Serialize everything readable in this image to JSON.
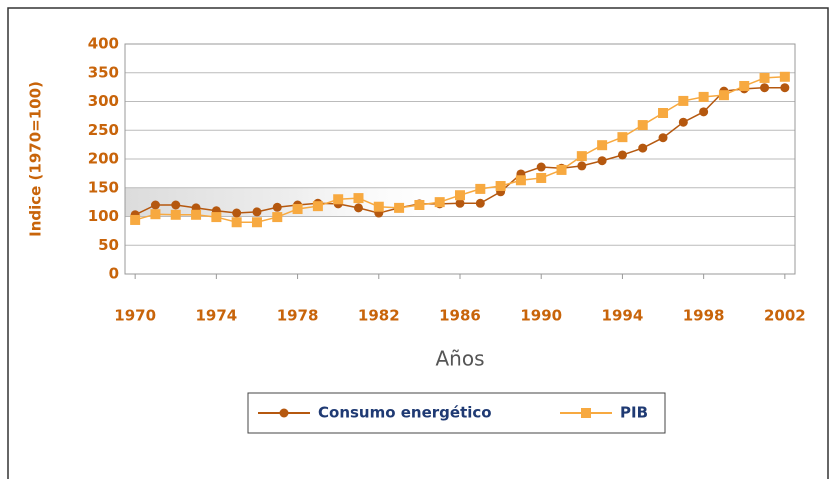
{
  "chart_data": {
    "type": "line",
    "ylabel": "Indice (1970=100)",
    "xlabel": "Años",
    "x": [
      1970,
      1971,
      1972,
      1973,
      1974,
      1975,
      1976,
      1977,
      1978,
      1979,
      1980,
      1981,
      1982,
      1983,
      1984,
      1985,
      1986,
      1987,
      1988,
      1989,
      1990,
      1991,
      1992,
      1993,
      1994,
      1995,
      1996,
      1997,
      1998,
      1999,
      2000,
      2001,
      2002
    ],
    "series": [
      {
        "name": "Consumo energético",
        "color": "#b5580f",
        "marker": "circle",
        "values": [
          103,
          120,
          120,
          115,
          110,
          106,
          108,
          116,
          120,
          123,
          122,
          115,
          106,
          115,
          122,
          122,
          123,
          123,
          143,
          174,
          186,
          184,
          188,
          197,
          207,
          219,
          237,
          264,
          282,
          318,
          322,
          324,
          324
        ]
      },
      {
        "name": "PIB",
        "color": "#f7a940",
        "marker": "square",
        "values": [
          94,
          104,
          103,
          103,
          99,
          90,
          90,
          99,
          113,
          118,
          130,
          132,
          117,
          115,
          120,
          125,
          137,
          148,
          153,
          163,
          167,
          181,
          205,
          224,
          238,
          259,
          280,
          301,
          308,
          311,
          327,
          341,
          343
        ]
      }
    ],
    "xlim": [
      1969.5,
      2002.5
    ],
    "xticks": [
      1970,
      1974,
      1978,
      1982,
      1986,
      1990,
      1994,
      1998,
      2002
    ],
    "ylim": [
      0,
      400
    ],
    "yticks": [
      0,
      50,
      100,
      150,
      200,
      250,
      300,
      350,
      400
    ],
    "grid": true
  }
}
